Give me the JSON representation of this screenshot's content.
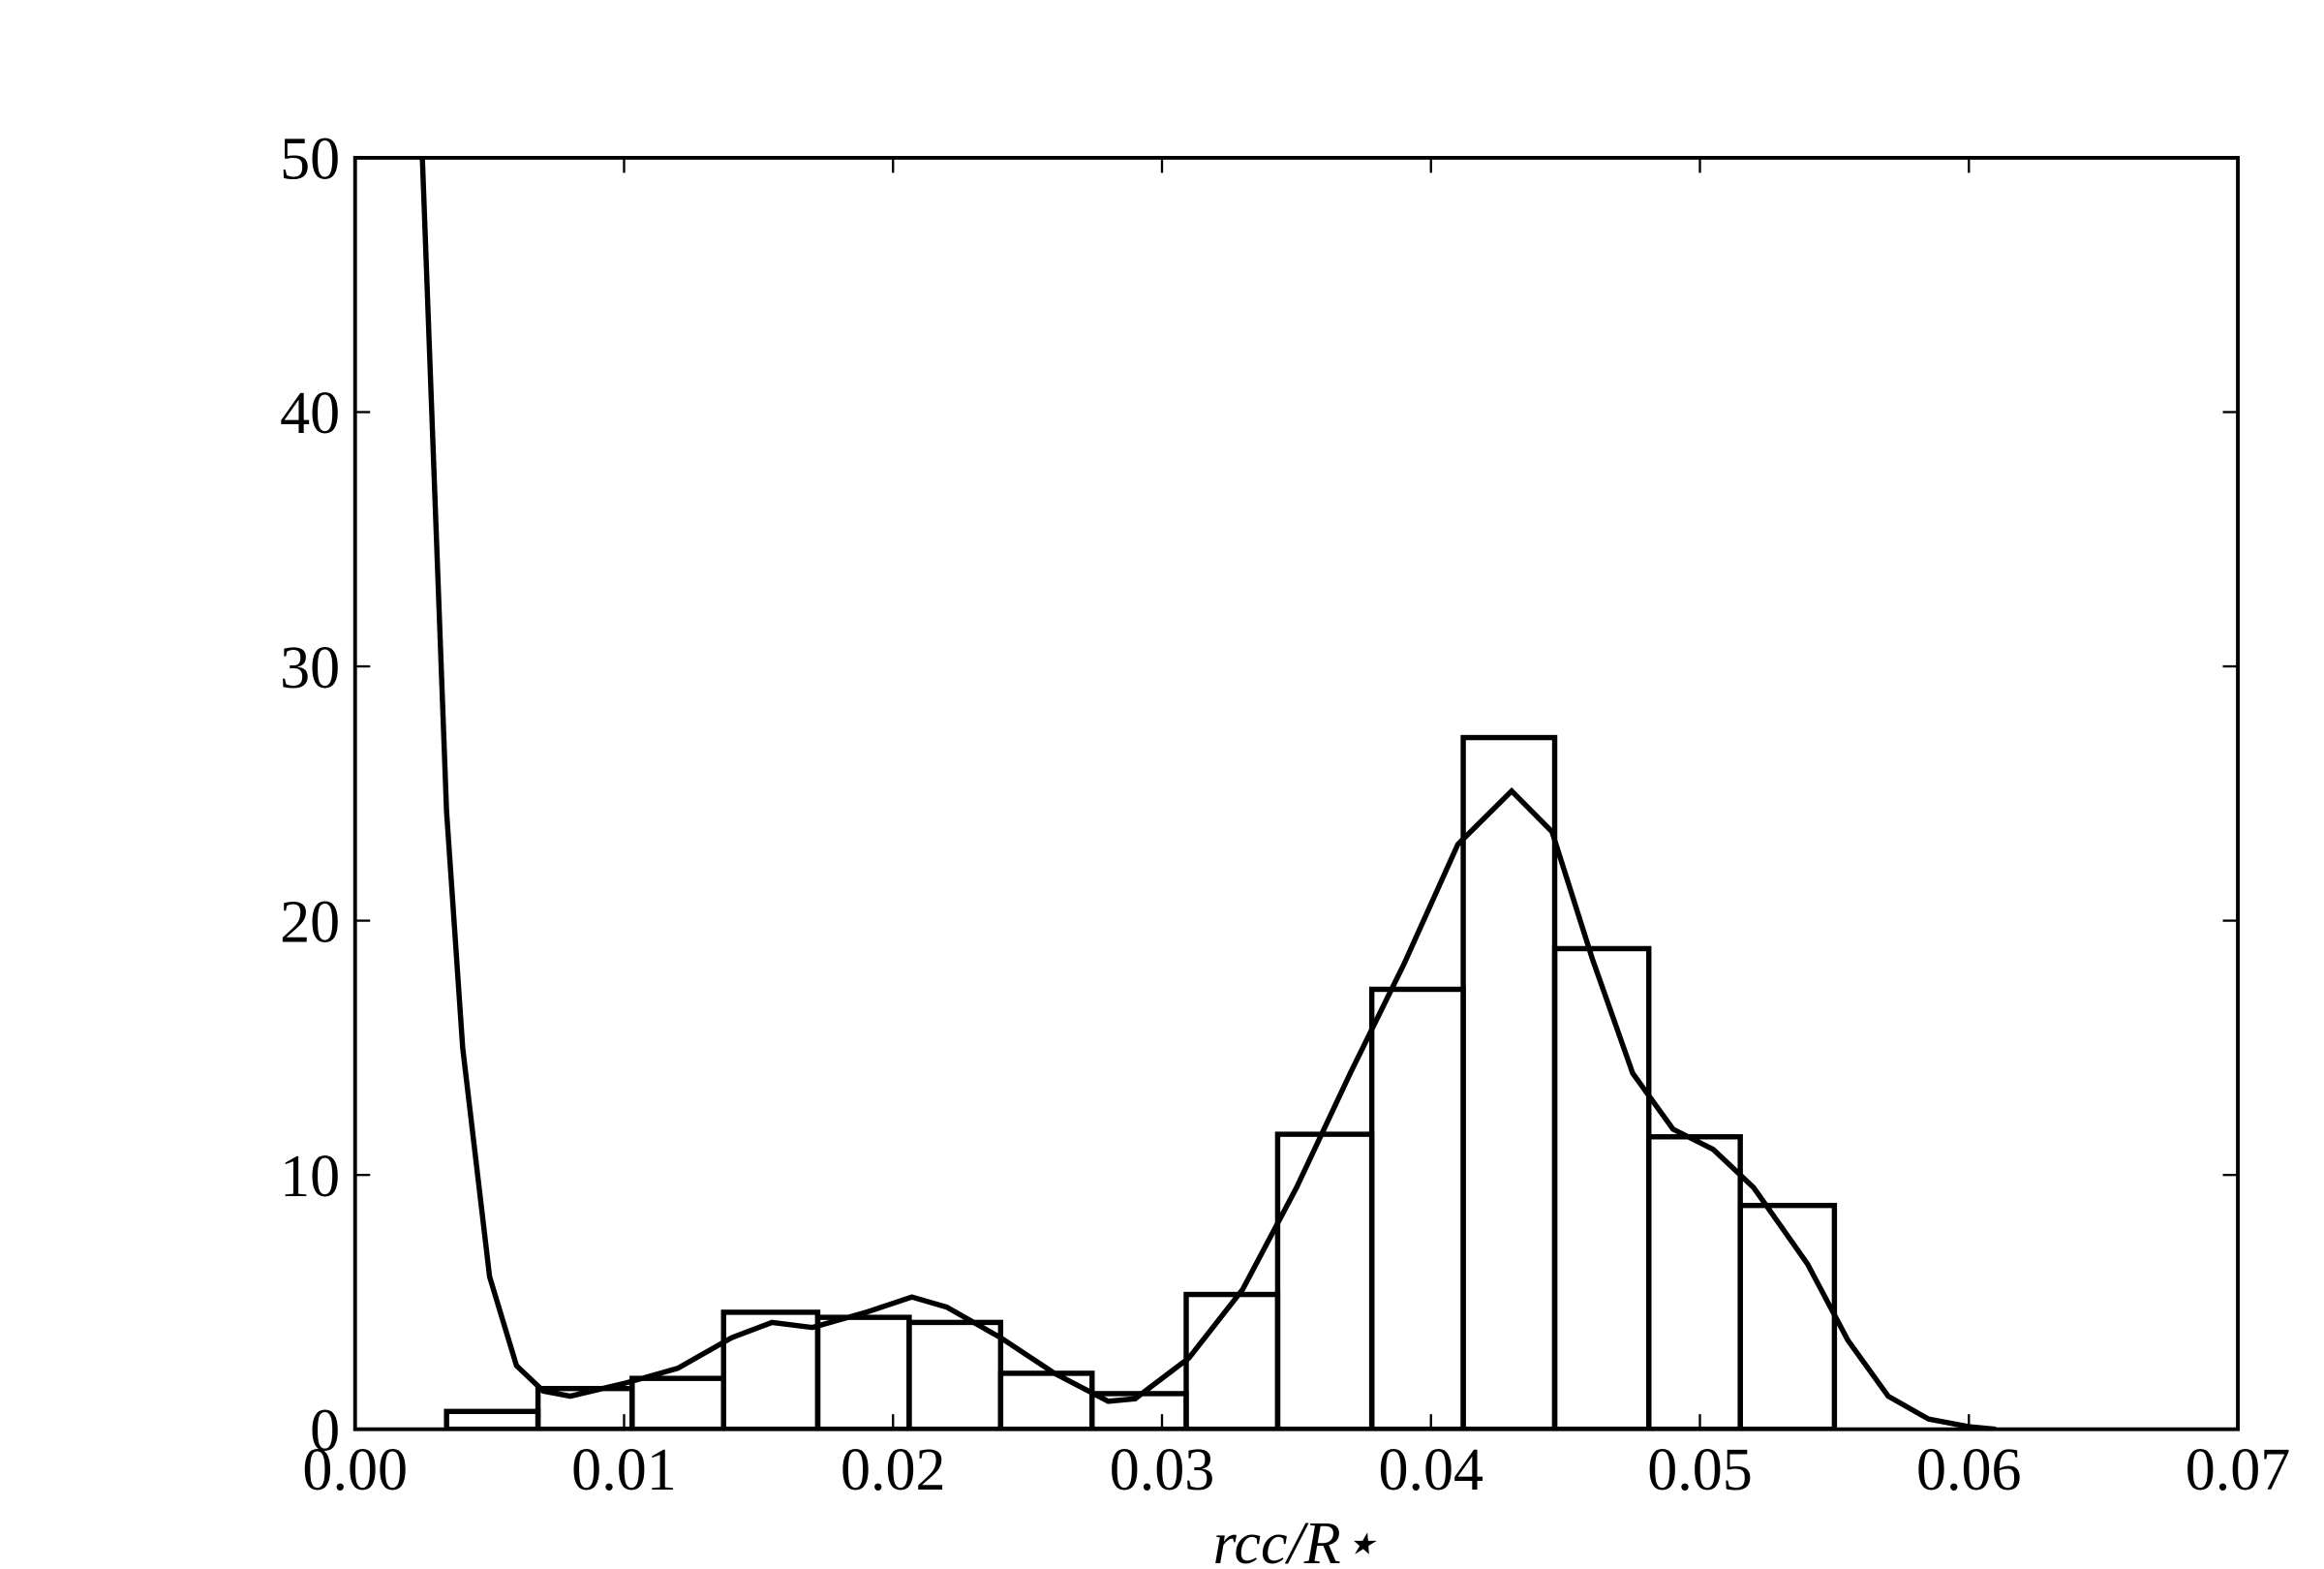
{
  "chart_data": {
    "type": "histogram",
    "xlabel": "rcc/R⋆",
    "bins": [
      0.0034,
      0.0068,
      0.0103,
      0.0137,
      0.0172,
      0.0206,
      0.024,
      0.0274,
      0.0309,
      0.0343,
      0.0378,
      0.0412,
      0.0446,
      0.0481,
      0.0515,
      0.055
    ],
    "counts": [
      0.7,
      1.6,
      2.0,
      4.6,
      4.4,
      4.2,
      2.2,
      1.4,
      5.3,
      11.6,
      17.3,
      27.2,
      18.9,
      11.5,
      8.8
    ],
    "color": "#000000",
    "curve": {
      "x": [
        0.0025,
        0.0034,
        0.004,
        0.005,
        0.006,
        0.007,
        0.008,
        0.01,
        0.012,
        0.014,
        0.0155,
        0.017,
        0.019,
        0.0207,
        0.022,
        0.024,
        0.026,
        0.028,
        0.029,
        0.031,
        0.033,
        0.035,
        0.037,
        0.039,
        0.041,
        0.043,
        0.0445,
        0.046,
        0.0475,
        0.049,
        0.0505,
        0.052,
        0.054,
        0.0555,
        0.057,
        0.0585,
        0.06,
        0.061
      ],
      "values": [
        50,
        24.3,
        15,
        6,
        2.5,
        1.5,
        1.3,
        1.8,
        2.4,
        3.6,
        4.2,
        4.0,
        4.6,
        5.2,
        4.8,
        3.6,
        2.2,
        1.1,
        1.2,
        2.8,
        5.5,
        9.5,
        14.0,
        18.3,
        23.0,
        25.1,
        23.5,
        18.5,
        14.0,
        11.8,
        11.0,
        9.5,
        6.5,
        3.5,
        1.3,
        0.4,
        0.1,
        0
      ]
    },
    "xlim": [
      0,
      0.07
    ],
    "xticks": [
      {
        "value": 0,
        "label": "0.00"
      },
      {
        "value": 0.01,
        "label": "0.01"
      },
      {
        "value": 0.02,
        "label": "0.02"
      },
      {
        "value": 0.03,
        "label": "0.03"
      },
      {
        "value": 0.04,
        "label": "0.04"
      },
      {
        "value": 0.05,
        "label": "0.05"
      },
      {
        "value": 0.06,
        "label": "0.06"
      },
      {
        "value": 0.07,
        "label": "0.07"
      }
    ],
    "ylim": [
      0,
      50
    ],
    "yticks": [
      0,
      10,
      20,
      30,
      40,
      50
    ]
  }
}
